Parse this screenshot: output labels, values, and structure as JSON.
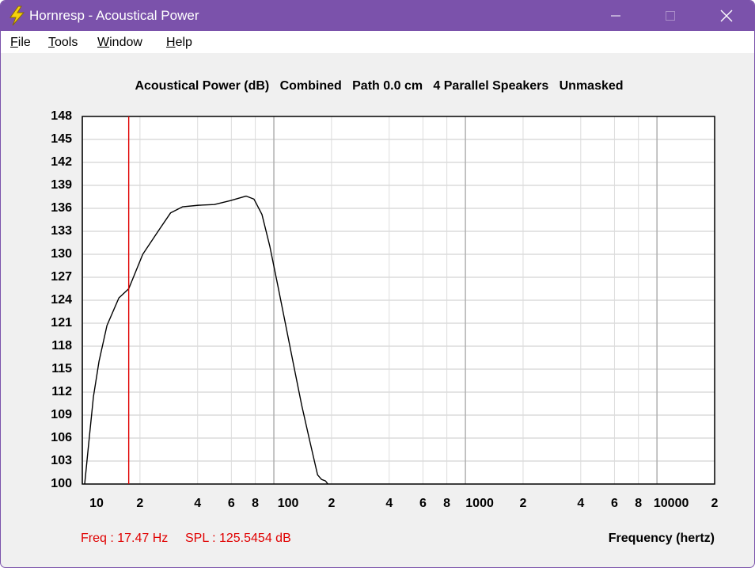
{
  "window": {
    "title": "Hornresp - Acoustical Power"
  },
  "menu": [
    "File",
    "Tools",
    "Window",
    "Help"
  ],
  "chart_data": {
    "type": "line",
    "title": "Acoustical Power (dB)   Combined   Path 0.0 cm   4 Parallel Speakers   Unmasked",
    "x_label": "Frequency (hertz)",
    "x": [
      10.29,
      10.79,
      11.43,
      12.22,
      13.45,
      15.52,
      17.47,
      20.68,
      25.02,
      28.88,
      33.33,
      40.35,
      48.86,
      59.15,
      71.59,
      78.77,
      86.66,
      95.35,
      104.9,
      115.4,
      126.9,
      139.7,
      153.7,
      169.1,
      177.4,
      186.1,
      191.5
    ],
    "values": [
      100,
      105.2,
      111.4,
      116.0,
      120.7,
      124.3,
      125.5,
      130.0,
      133.1,
      135.4,
      136.2,
      136.4,
      136.5,
      137.0,
      137.6,
      137.2,
      135.2,
      131.0,
      125.9,
      120.7,
      115.5,
      110.3,
      105.7,
      101.2,
      100.6,
      100.4,
      100
    ],
    "color": "#000000",
    "xscale": "log",
    "xlim": [
      10,
      20000
    ],
    "xticks": [
      10,
      {
        "value": 20,
        "label": "2"
      },
      {
        "value": 40,
        "label": "4"
      },
      {
        "value": 60,
        "label": "6"
      },
      {
        "value": 80,
        "label": "8"
      },
      100,
      {
        "value": 200,
        "label": "2"
      },
      {
        "value": 400,
        "label": "4"
      },
      {
        "value": 600,
        "label": "6"
      },
      {
        "value": 800,
        "label": "8"
      },
      1000,
      {
        "value": 2000,
        "label": "2"
      },
      {
        "value": 4000,
        "label": "4"
      },
      {
        "value": 6000,
        "label": "6"
      },
      {
        "value": 8000,
        "label": "8"
      },
      10000,
      {
        "value": 20000,
        "label": "2"
      }
    ],
    "ylim": [
      100,
      148
    ],
    "yticks": [
      100,
      103,
      106,
      109,
      112,
      115,
      118,
      121,
      124,
      127,
      130,
      133,
      136,
      139,
      142,
      145,
      148
    ],
    "grid": true,
    "cursor_x": 17.47,
    "cursor_color": "#e00000",
    "annotations": [
      "Freq : 17.47 Hz",
      "SPL : 125.5454 dB"
    ]
  }
}
